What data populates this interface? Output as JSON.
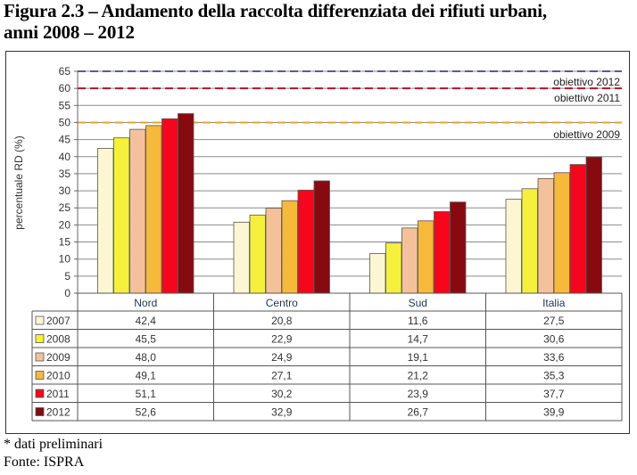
{
  "title_line1": "Figura 2.3 – Andamento della raccolta differenziata dei rifiuti urbani,",
  "title_line2": "anni 2008 – 2012",
  "footnote": "* dati preliminari",
  "source": "Fonte: ISPRA",
  "chart_data": {
    "type": "bar",
    "title": "Figura 2.3 – Andamento della raccolta differenziata dei rifiuti urbani, anni 2008 – 2012",
    "xlabel": "",
    "ylabel": "percentuale RD (%)",
    "ylim": [
      0,
      65
    ],
    "yticks": [
      "0",
      "5",
      "10",
      "15",
      "20",
      "25",
      "30",
      "35",
      "40",
      "45",
      "50",
      "55",
      "60",
      "65"
    ],
    "grid": true,
    "categories": [
      "Nord",
      "Centro",
      "Sud",
      "Italia"
    ],
    "series": [
      {
        "name": "2007",
        "color": "#fdf6d2",
        "values": [
          42.4,
          20.8,
          11.6,
          27.5
        ],
        "labels": [
          "42,4",
          "20,8",
          "11,6",
          "27,5"
        ]
      },
      {
        "name": "2008",
        "color": "#f5f03c",
        "values": [
          45.5,
          22.9,
          14.7,
          30.6
        ],
        "labels": [
          "45,5",
          "22,9",
          "14,7",
          "30,6"
        ]
      },
      {
        "name": "2009",
        "color": "#f4c29a",
        "values": [
          48.0,
          24.9,
          19.1,
          33.6
        ],
        "labels": [
          "48,0",
          "24,9",
          "19,1",
          "33,6"
        ]
      },
      {
        "name": "2010",
        "color": "#f6b93a",
        "values": [
          49.1,
          27.1,
          21.2,
          35.3
        ],
        "labels": [
          "49,1",
          "27,1",
          "21,2",
          "35,3"
        ]
      },
      {
        "name": "2011",
        "color": "#f5061c",
        "values": [
          51.1,
          30.2,
          23.9,
          37.7
        ],
        "labels": [
          "51,1",
          "30,2",
          "23,9",
          "37,7"
        ]
      },
      {
        "name": "2012",
        "color": "#860a10",
        "values": [
          52.6,
          32.9,
          26.7,
          39.9
        ],
        "labels": [
          "52,6",
          "32,9",
          "26,7",
          "39,9"
        ]
      }
    ],
    "reference_lines": [
      {
        "label": "obiettivo 2012",
        "value": 65,
        "color": "#5a5a96"
      },
      {
        "label": "obiettivo 2011",
        "value": 60,
        "color": "#b3122e"
      },
      {
        "label": "obiettivo 2009",
        "value": 50,
        "color": "#f0a020"
      }
    ],
    "legend": "data-table-left"
  }
}
